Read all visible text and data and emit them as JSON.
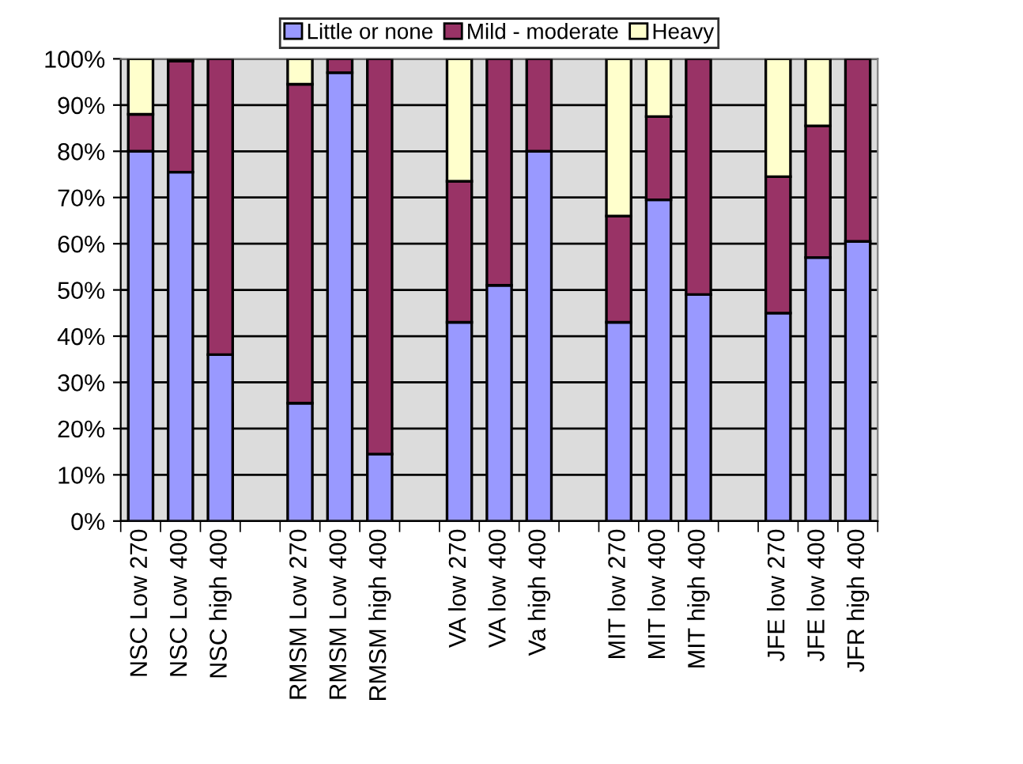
{
  "chart_data": {
    "type": "bar",
    "stacked": true,
    "categories": [
      "NSC Low 270",
      "NSC Low 400",
      "NSC high 400",
      null,
      "RMSM Low 270",
      "RMSM Low 400",
      "RMSM high 400",
      null,
      "VA low 270",
      "VA low 400",
      "Va high 400",
      null,
      "MIT low 270",
      "MIT low 400",
      "MIT high 400",
      null,
      "JFE low 270",
      "JFE low 400",
      "JFR high 400"
    ],
    "series": [
      {
        "name": "Little or none",
        "color": "#9999ff",
        "values": [
          80,
          75.5,
          36,
          null,
          25.5,
          97,
          14.5,
          null,
          43,
          51,
          80,
          null,
          43,
          69.5,
          49,
          null,
          45,
          57,
          60.5
        ]
      },
      {
        "name": "Mild - moderate",
        "color": "#993366",
        "values": [
          8,
          24,
          64,
          null,
          69,
          3,
          85.5,
          null,
          30.5,
          49,
          20,
          null,
          23,
          18,
          51,
          null,
          29.5,
          28.5,
          39.5
        ]
      },
      {
        "name": "Heavy",
        "color": "#ffffcc",
        "values": [
          12,
          0.5,
          0,
          null,
          5.5,
          0,
          0,
          null,
          26.5,
          0,
          0,
          null,
          34,
          12.5,
          0,
          null,
          25.5,
          14.5,
          0
        ]
      }
    ],
    "ylim": [
      0,
      100
    ],
    "yticks": [
      {
        "value": 0,
        "label": "0%"
      },
      {
        "value": 10,
        "label": "10%"
      },
      {
        "value": 20,
        "label": "20%"
      },
      {
        "value": 30,
        "label": "30%"
      },
      {
        "value": 40,
        "label": "40%"
      },
      {
        "value": 50,
        "label": "50%"
      },
      {
        "value": 60,
        "label": "60%"
      },
      {
        "value": 70,
        "label": "70%"
      },
      {
        "value": 80,
        "label": "80%"
      },
      {
        "value": 90,
        "label": "90%"
      },
      {
        "value": 100,
        "label": "100%"
      }
    ],
    "grid": "y",
    "legend": "top"
  }
}
